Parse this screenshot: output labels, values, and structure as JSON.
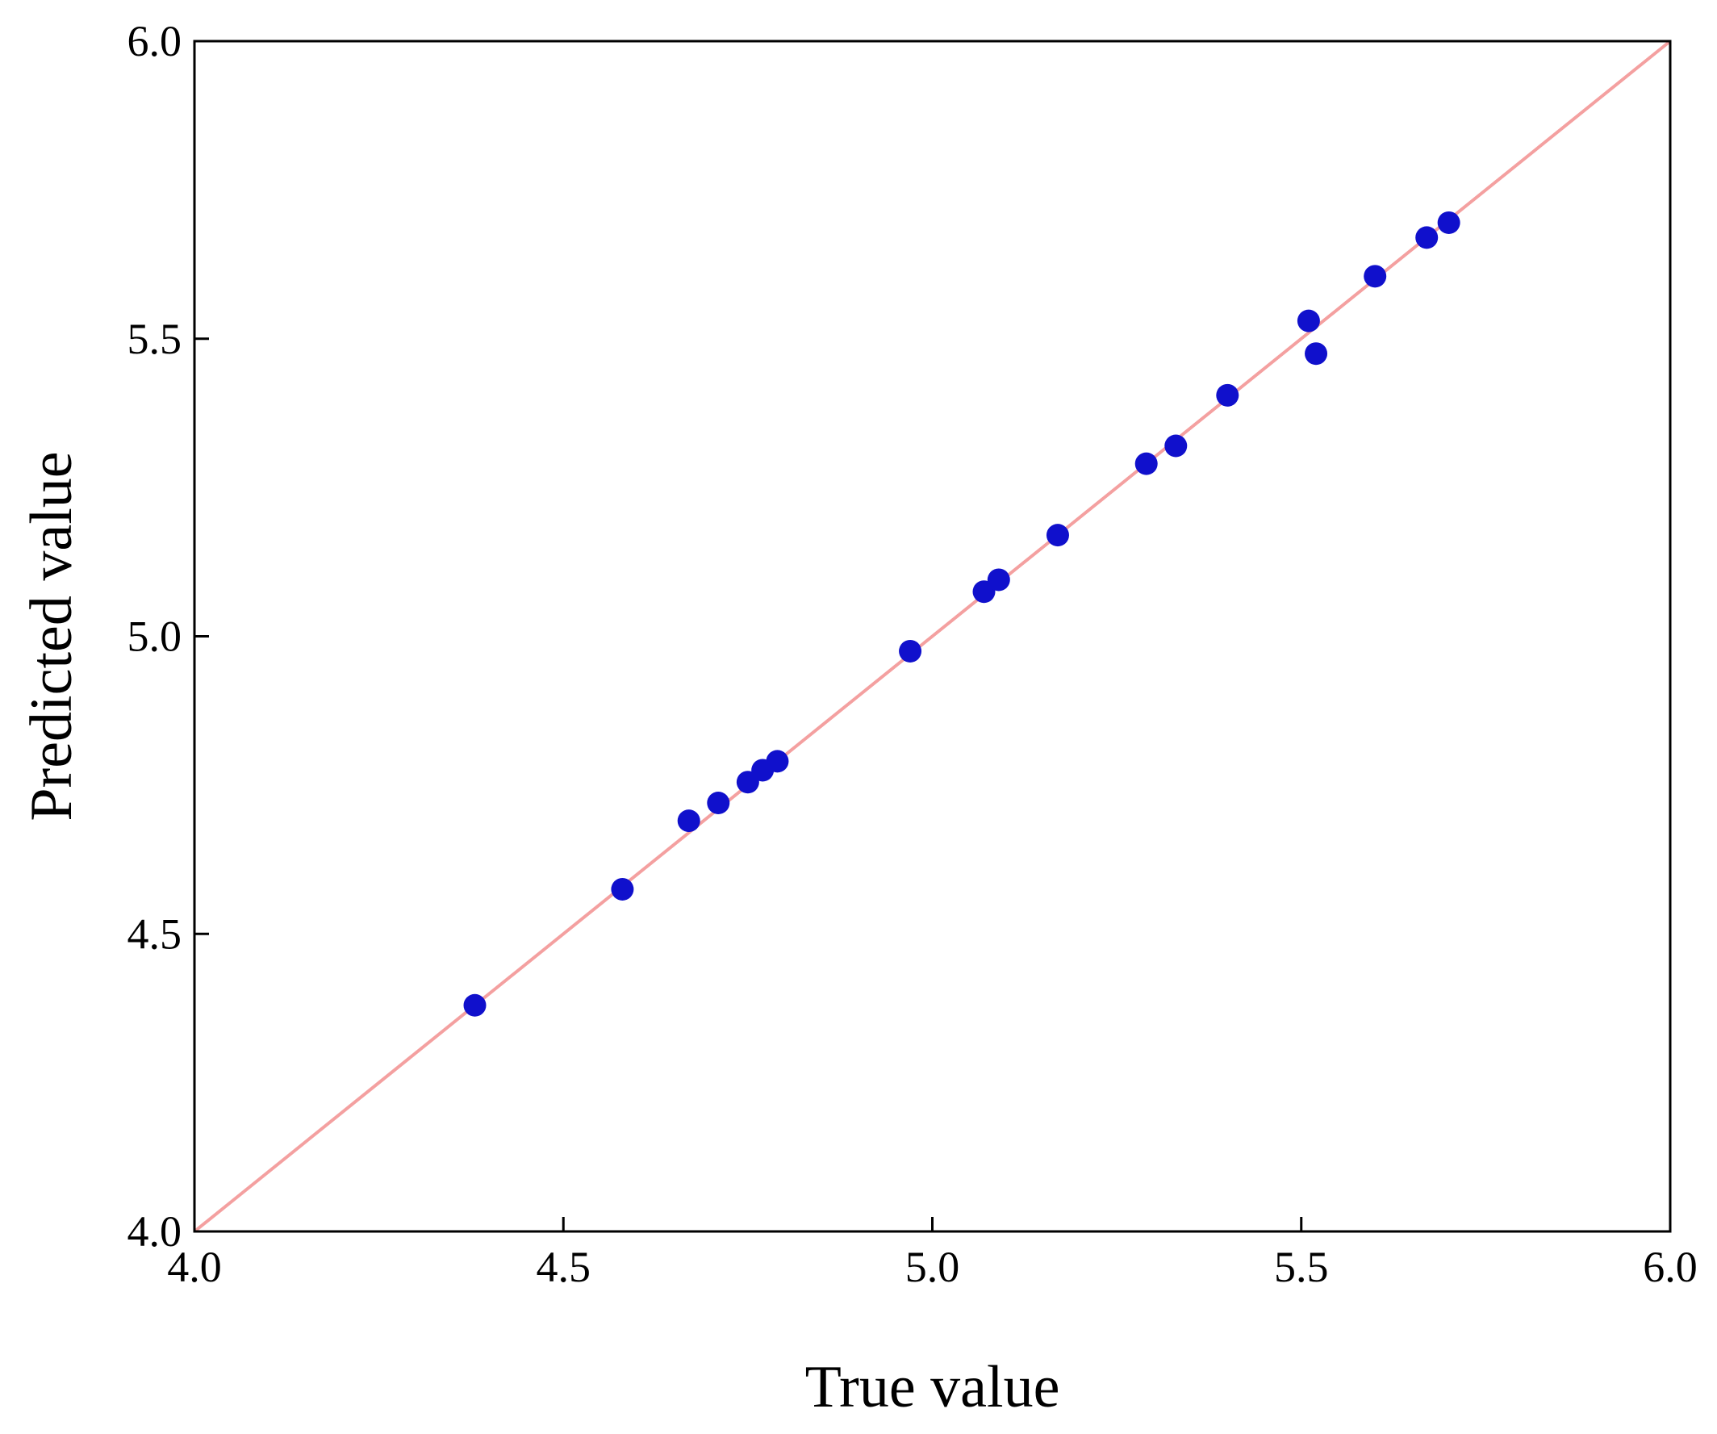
{
  "chart_data": {
    "type": "scatter",
    "title": "",
    "xlabel": "True value",
    "ylabel": "Predicted value",
    "xlim": [
      4.0,
      6.0
    ],
    "ylim": [
      4.0,
      6.0
    ],
    "x_ticks": [
      "4.0",
      "4.5",
      "5.0",
      "5.5",
      "6.0"
    ],
    "y_ticks": [
      "4.0",
      "4.5",
      "5.0",
      "5.5",
      "6.0"
    ],
    "grid": false,
    "legend": "none",
    "reference_line": {
      "from": [
        4.0,
        4.0
      ],
      "to": [
        6.0,
        6.0
      ],
      "color": "#f4a0a0"
    },
    "point_color": "#1010cc",
    "points": [
      {
        "x": 4.38,
        "y": 4.38
      },
      {
        "x": 4.58,
        "y": 4.575
      },
      {
        "x": 4.67,
        "y": 4.69
      },
      {
        "x": 4.71,
        "y": 4.72
      },
      {
        "x": 4.75,
        "y": 4.755
      },
      {
        "x": 4.77,
        "y": 4.775
      },
      {
        "x": 4.79,
        "y": 4.79
      },
      {
        "x": 4.97,
        "y": 4.975
      },
      {
        "x": 5.07,
        "y": 5.075
      },
      {
        "x": 5.09,
        "y": 5.095
      },
      {
        "x": 5.17,
        "y": 5.17
      },
      {
        "x": 5.29,
        "y": 5.29
      },
      {
        "x": 5.33,
        "y": 5.32
      },
      {
        "x": 5.4,
        "y": 5.405
      },
      {
        "x": 5.51,
        "y": 5.53
      },
      {
        "x": 5.52,
        "y": 5.475
      },
      {
        "x": 5.6,
        "y": 5.605
      },
      {
        "x": 5.67,
        "y": 5.67
      },
      {
        "x": 5.7,
        "y": 5.695
      }
    ]
  }
}
